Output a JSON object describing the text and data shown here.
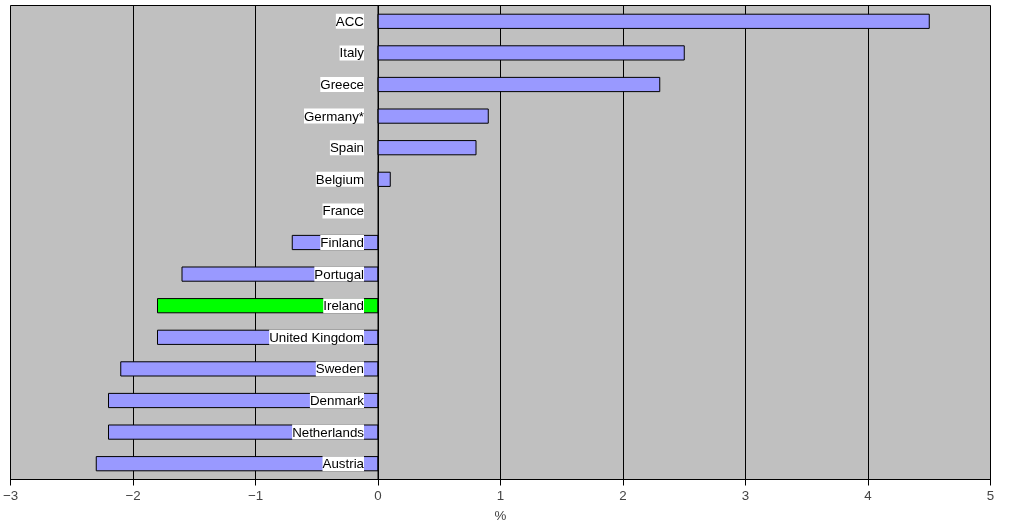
{
  "chart_data": {
    "type": "bar",
    "orientation": "horizontal",
    "xlabel": "%",
    "categories": [
      "ACC",
      "Italy",
      "Greece",
      "Germany*",
      "Spain",
      "Belgium",
      "France",
      "Finland",
      "Portugal",
      "Ireland",
      "United Kingdom",
      "Sweden",
      "Denmark",
      "Netherlands",
      "Austria"
    ],
    "values": [
      4.5,
      2.5,
      2.3,
      0.9,
      0.8,
      0.1,
      0,
      -0.7,
      -1.6,
      -1.8,
      -1.8,
      -2.1,
      -2.2,
      -2.2,
      -2.3
    ],
    "colors": [
      "#9999ff",
      "#9999ff",
      "#9999ff",
      "#9999ff",
      "#9999ff",
      "#9999ff",
      "#9999ff",
      "#9999ff",
      "#9999ff",
      "#00ff00",
      "#9999ff",
      "#9999ff",
      "#9999ff",
      "#9999ff",
      "#9999ff"
    ],
    "xlim": [
      -3,
      5
    ],
    "xticks": [
      -3,
      -2,
      -1,
      0,
      1,
      2,
      3,
      4,
      5
    ],
    "grid": "x"
  }
}
